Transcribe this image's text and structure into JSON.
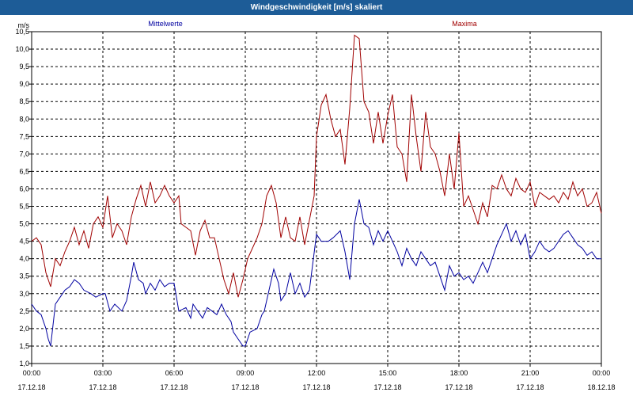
{
  "window": {
    "title": "Windgeschwindigkeit [m/s] skaliert"
  },
  "chart_data": {
    "type": "line",
    "title": "Windgeschwindigkeit [m/s] skaliert",
    "ylabel": "m/s",
    "xlabel": "",
    "ylim": [
      1.0,
      10.5
    ],
    "xlim": [
      0,
      24
    ],
    "grid": true,
    "legend_placement": "top",
    "y_ticks": [
      "1,0",
      "1,5",
      "2,0",
      "2,5",
      "3,0",
      "3,5",
      "4,0",
      "4,5",
      "5,0",
      "5,5",
      "6,0",
      "6,5",
      "7,0",
      "7,5",
      "8,0",
      "8,5",
      "9,0",
      "9,5",
      "10,0",
      "10,5"
    ],
    "x_ticks": [
      {
        "time": "00:00",
        "date": "17.12.18"
      },
      {
        "time": "03:00",
        "date": "17.12.18"
      },
      {
        "time": "06:00",
        "date": "17.12.18"
      },
      {
        "time": "09:00",
        "date": "17.12.18"
      },
      {
        "time": "12:00",
        "date": "17.12.18"
      },
      {
        "time": "15:00",
        "date": "17.12.18"
      },
      {
        "time": "18:00",
        "date": "17.12.18"
      },
      {
        "time": "21:00",
        "date": "17.12.18"
      },
      {
        "time": "00:00",
        "date": "18.12.18"
      }
    ],
    "x_unit": "hours",
    "series": [
      {
        "name": "Mittelwerte",
        "color": "#0000a0",
        "points": [
          [
            0.0,
            2.7
          ],
          [
            0.2,
            2.5
          ],
          [
            0.4,
            2.4
          ],
          [
            0.6,
            2.0
          ],
          [
            0.7,
            1.7
          ],
          [
            0.8,
            1.5
          ],
          [
            1.0,
            2.7
          ],
          [
            1.2,
            2.9
          ],
          [
            1.4,
            3.1
          ],
          [
            1.6,
            3.2
          ],
          [
            1.8,
            3.4
          ],
          [
            2.0,
            3.3
          ],
          [
            2.2,
            3.1
          ],
          [
            2.5,
            3.0
          ],
          [
            2.7,
            2.9
          ],
          [
            3.0,
            3.0
          ],
          [
            3.1,
            3.0
          ],
          [
            3.3,
            2.5
          ],
          [
            3.5,
            2.7
          ],
          [
            3.8,
            2.5
          ],
          [
            4.0,
            2.8
          ],
          [
            4.2,
            3.5
          ],
          [
            4.3,
            3.9
          ],
          [
            4.5,
            3.4
          ],
          [
            4.7,
            3.3
          ],
          [
            4.8,
            3.0
          ],
          [
            5.0,
            3.3
          ],
          [
            5.2,
            3.1
          ],
          [
            5.4,
            3.4
          ],
          [
            5.6,
            3.2
          ],
          [
            5.8,
            3.3
          ],
          [
            6.0,
            3.3
          ],
          [
            6.2,
            2.5
          ],
          [
            6.5,
            2.6
          ],
          [
            6.7,
            2.3
          ],
          [
            6.8,
            2.7
          ],
          [
            7.0,
            2.5
          ],
          [
            7.2,
            2.3
          ],
          [
            7.4,
            2.6
          ],
          [
            7.6,
            2.5
          ],
          [
            7.8,
            2.4
          ],
          [
            8.0,
            2.7
          ],
          [
            8.2,
            2.4
          ],
          [
            8.4,
            2.2
          ],
          [
            8.5,
            1.9
          ],
          [
            8.7,
            1.7
          ],
          [
            8.9,
            1.5
          ],
          [
            9.0,
            1.5
          ],
          [
            9.2,
            1.9
          ],
          [
            9.5,
            2.0
          ],
          [
            9.7,
            2.4
          ],
          [
            9.8,
            2.5
          ],
          [
            10.0,
            3.1
          ],
          [
            10.2,
            3.7
          ],
          [
            10.4,
            3.3
          ],
          [
            10.5,
            2.8
          ],
          [
            10.7,
            3.0
          ],
          [
            10.9,
            3.6
          ],
          [
            11.1,
            3.0
          ],
          [
            11.3,
            3.3
          ],
          [
            11.5,
            2.9
          ],
          [
            11.7,
            3.1
          ],
          [
            12.0,
            4.7
          ],
          [
            12.2,
            4.5
          ],
          [
            12.5,
            4.5
          ],
          [
            12.7,
            4.6
          ],
          [
            13.0,
            4.8
          ],
          [
            13.2,
            4.2
          ],
          [
            13.4,
            3.4
          ],
          [
            13.6,
            5.0
          ],
          [
            13.8,
            5.7
          ],
          [
            14.0,
            5.0
          ],
          [
            14.2,
            4.9
          ],
          [
            14.4,
            4.4
          ],
          [
            14.6,
            4.8
          ],
          [
            14.8,
            4.5
          ],
          [
            15.0,
            4.8
          ],
          [
            15.2,
            4.5
          ],
          [
            15.4,
            4.2
          ],
          [
            15.6,
            3.8
          ],
          [
            15.8,
            4.3
          ],
          [
            16.0,
            4.0
          ],
          [
            16.2,
            3.8
          ],
          [
            16.4,
            4.2
          ],
          [
            16.6,
            4.0
          ],
          [
            16.8,
            3.8
          ],
          [
            17.0,
            3.9
          ],
          [
            17.2,
            3.5
          ],
          [
            17.4,
            3.1
          ],
          [
            17.6,
            3.8
          ],
          [
            17.8,
            3.5
          ],
          [
            18.0,
            3.6
          ],
          [
            18.2,
            3.4
          ],
          [
            18.4,
            3.5
          ],
          [
            18.6,
            3.3
          ],
          [
            18.8,
            3.6
          ],
          [
            19.0,
            3.9
          ],
          [
            19.2,
            3.6
          ],
          [
            19.4,
            4.0
          ],
          [
            19.6,
            4.4
          ],
          [
            19.8,
            4.7
          ],
          [
            20.0,
            5.0
          ],
          [
            20.2,
            4.5
          ],
          [
            20.4,
            4.8
          ],
          [
            20.6,
            4.4
          ],
          [
            20.8,
            4.7
          ],
          [
            21.0,
            4.0
          ],
          [
            21.2,
            4.2
          ],
          [
            21.4,
            4.5
          ],
          [
            21.6,
            4.3
          ],
          [
            21.8,
            4.2
          ],
          [
            22.0,
            4.3
          ],
          [
            22.2,
            4.5
          ],
          [
            22.4,
            4.7
          ],
          [
            22.6,
            4.8
          ],
          [
            22.8,
            4.6
          ],
          [
            23.0,
            4.4
          ],
          [
            23.2,
            4.3
          ],
          [
            23.4,
            4.1
          ],
          [
            23.6,
            4.2
          ],
          [
            23.8,
            4.0
          ],
          [
            24.0,
            4.0
          ]
        ]
      },
      {
        "name": "Maxima",
        "color": "#a00000",
        "points": [
          [
            0.0,
            4.5
          ],
          [
            0.2,
            4.6
          ],
          [
            0.4,
            4.4
          ],
          [
            0.6,
            3.6
          ],
          [
            0.8,
            3.2
          ],
          [
            1.0,
            4.0
          ],
          [
            1.2,
            3.8
          ],
          [
            1.4,
            4.2
          ],
          [
            1.6,
            4.5
          ],
          [
            1.8,
            4.9
          ],
          [
            2.0,
            4.4
          ],
          [
            2.2,
            4.8
          ],
          [
            2.4,
            4.3
          ],
          [
            2.6,
            5.0
          ],
          [
            2.8,
            5.2
          ],
          [
            3.0,
            4.9
          ],
          [
            3.2,
            5.8
          ],
          [
            3.4,
            4.6
          ],
          [
            3.6,
            5.0
          ],
          [
            3.8,
            4.8
          ],
          [
            4.0,
            4.4
          ],
          [
            4.2,
            5.2
          ],
          [
            4.4,
            5.7
          ],
          [
            4.6,
            6.1
          ],
          [
            4.8,
            5.5
          ],
          [
            5.0,
            6.2
          ],
          [
            5.2,
            5.6
          ],
          [
            5.4,
            5.8
          ],
          [
            5.6,
            6.1
          ],
          [
            5.8,
            5.8
          ],
          [
            6.0,
            5.6
          ],
          [
            6.2,
            5.8
          ],
          [
            6.3,
            5.0
          ],
          [
            6.5,
            4.9
          ],
          [
            6.7,
            4.8
          ],
          [
            6.9,
            4.1
          ],
          [
            7.1,
            4.8
          ],
          [
            7.3,
            5.1
          ],
          [
            7.5,
            4.6
          ],
          [
            7.7,
            4.6
          ],
          [
            7.9,
            4.0
          ],
          [
            8.1,
            3.4
          ],
          [
            8.3,
            3.0
          ],
          [
            8.5,
            3.6
          ],
          [
            8.7,
            2.9
          ],
          [
            8.9,
            3.4
          ],
          [
            9.1,
            4.0
          ],
          [
            9.3,
            4.3
          ],
          [
            9.5,
            4.6
          ],
          [
            9.7,
            5.0
          ],
          [
            9.9,
            5.8
          ],
          [
            10.1,
            6.1
          ],
          [
            10.3,
            5.6
          ],
          [
            10.5,
            4.6
          ],
          [
            10.7,
            5.2
          ],
          [
            10.9,
            4.6
          ],
          [
            11.1,
            4.5
          ],
          [
            11.3,
            5.2
          ],
          [
            11.5,
            4.4
          ],
          [
            11.7,
            5.1
          ],
          [
            11.9,
            5.8
          ],
          [
            12.0,
            7.5
          ],
          [
            12.2,
            8.4
          ],
          [
            12.4,
            8.7
          ],
          [
            12.6,
            8.0
          ],
          [
            12.8,
            7.5
          ],
          [
            13.0,
            7.7
          ],
          [
            13.2,
            6.7
          ],
          [
            13.4,
            8.3
          ],
          [
            13.6,
            10.4
          ],
          [
            13.8,
            10.3
          ],
          [
            14.0,
            8.5
          ],
          [
            14.2,
            8.2
          ],
          [
            14.4,
            7.3
          ],
          [
            14.6,
            8.2
          ],
          [
            14.8,
            7.3
          ],
          [
            15.0,
            8.1
          ],
          [
            15.2,
            8.7
          ],
          [
            15.4,
            7.2
          ],
          [
            15.6,
            7.0
          ],
          [
            15.8,
            6.2
          ],
          [
            16.0,
            8.7
          ],
          [
            16.2,
            7.5
          ],
          [
            16.4,
            6.5
          ],
          [
            16.6,
            8.2
          ],
          [
            16.8,
            7.2
          ],
          [
            17.0,
            7.0
          ],
          [
            17.2,
            6.5
          ],
          [
            17.4,
            5.8
          ],
          [
            17.6,
            7.0
          ],
          [
            17.8,
            6.0
          ],
          [
            18.0,
            7.6
          ],
          [
            18.2,
            5.5
          ],
          [
            18.4,
            5.8
          ],
          [
            18.6,
            5.4
          ],
          [
            18.8,
            5.0
          ],
          [
            19.0,
            5.6
          ],
          [
            19.2,
            5.2
          ],
          [
            19.4,
            6.1
          ],
          [
            19.6,
            6.0
          ],
          [
            19.8,
            6.4
          ],
          [
            20.0,
            6.0
          ],
          [
            20.2,
            5.8
          ],
          [
            20.4,
            6.3
          ],
          [
            20.6,
            6.0
          ],
          [
            20.8,
            5.9
          ],
          [
            21.0,
            6.2
          ],
          [
            21.2,
            5.5
          ],
          [
            21.4,
            5.9
          ],
          [
            21.6,
            5.8
          ],
          [
            21.8,
            5.7
          ],
          [
            22.0,
            5.8
          ],
          [
            22.2,
            5.6
          ],
          [
            22.4,
            5.9
          ],
          [
            22.6,
            5.7
          ],
          [
            22.8,
            6.2
          ],
          [
            23.0,
            5.8
          ],
          [
            23.2,
            6.0
          ],
          [
            23.4,
            5.5
          ],
          [
            23.6,
            5.6
          ],
          [
            23.8,
            5.9
          ],
          [
            24.0,
            5.3
          ]
        ]
      }
    ]
  }
}
